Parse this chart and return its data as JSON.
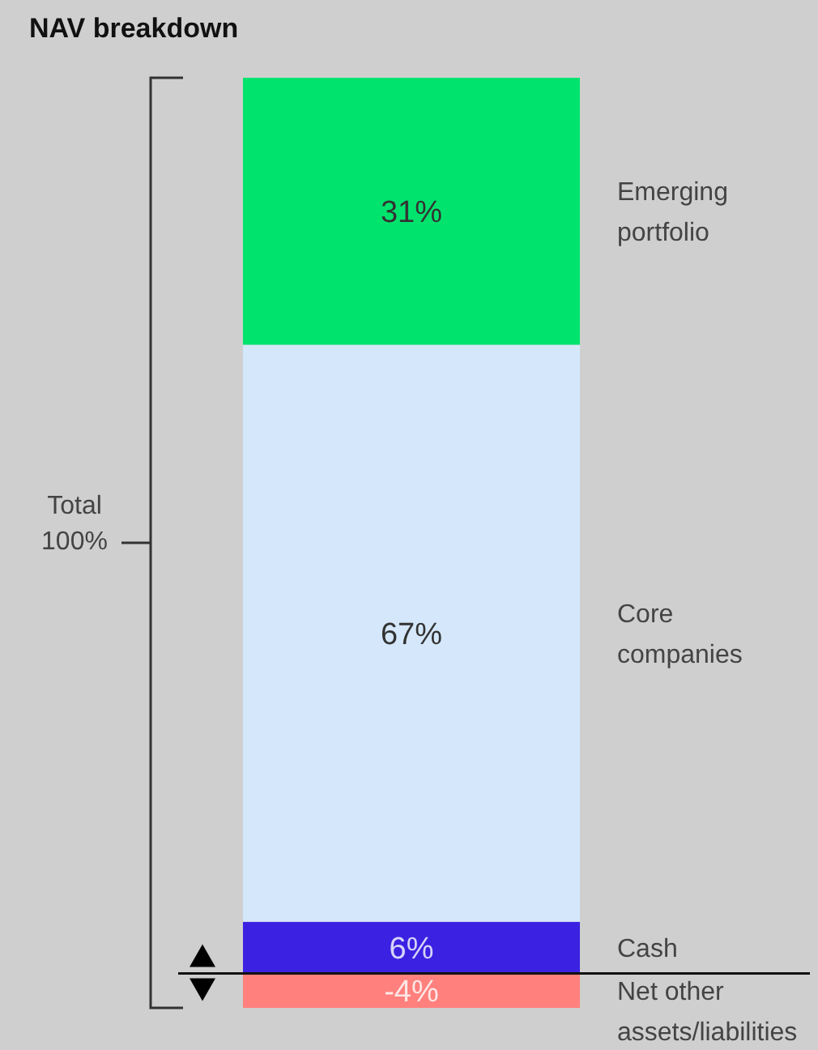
{
  "chart_data": {
    "type": "bar",
    "title": "NAV breakdown",
    "categories": [
      null
    ],
    "stacked": true,
    "data_labels": true,
    "series": [
      {
        "name": "Cash",
        "color": "#3b22e2",
        "values": [
          6
        ],
        "value_labels": [
          "6%"
        ]
      },
      {
        "name": "Core companies",
        "color": "#d5e8fb",
        "values": [
          67
        ],
        "value_labels": [
          "67%"
        ]
      },
      {
        "name": "Emerging portfolio",
        "color": "#00e46e",
        "values": [
          31
        ],
        "value_labels": [
          "31%"
        ]
      },
      {
        "name": "Net other assets/liabilities",
        "color": "#ff807d",
        "values": [
          -4
        ],
        "value_labels": [
          "-4%"
        ]
      }
    ],
    "annotations": [
      "Total 100%"
    ]
  }
}
